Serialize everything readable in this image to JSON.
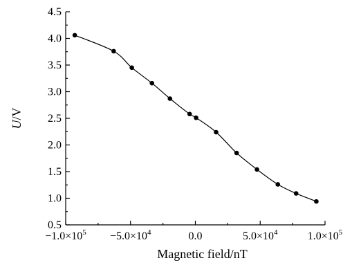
{
  "chart_data": {
    "type": "line",
    "title": "",
    "xlabel": "Magnetic field/nT",
    "ylabel_italic": "U",
    "ylabel_rest": "/V",
    "xlim": [
      -100000,
      100000
    ],
    "ylim": [
      0.5,
      4.5
    ],
    "x_ticks": [
      {
        "value": -100000,
        "mantissa": "−1.0",
        "times": "×",
        "base": "10",
        "exp": "5"
      },
      {
        "value": -50000,
        "mantissa": "−5.0",
        "times": "×",
        "base": "10",
        "exp": "4"
      },
      {
        "value": 0,
        "mantissa": "0.0",
        "times": "",
        "base": "",
        "exp": ""
      },
      {
        "value": 50000,
        "mantissa": "5.0",
        "times": "×",
        "base": "10",
        "exp": "4"
      },
      {
        "value": 100000,
        "mantissa": "1.0",
        "times": "×",
        "base": "10",
        "exp": "5"
      }
    ],
    "y_ticks": [
      {
        "value": 0.5,
        "label": "0.5"
      },
      {
        "value": 1.0,
        "label": "1.0"
      },
      {
        "value": 1.5,
        "label": "1.5"
      },
      {
        "value": 2.0,
        "label": "2.0"
      },
      {
        "value": 2.5,
        "label": "2.5"
      },
      {
        "value": 3.0,
        "label": "3.0"
      },
      {
        "value": 3.5,
        "label": "3.5"
      },
      {
        "value": 4.0,
        "label": "4.0"
      },
      {
        "value": 4.5,
        "label": "4.5"
      }
    ],
    "series": [
      {
        "points": [
          {
            "x": -93000,
            "y": 4.06
          },
          {
            "x": -63000,
            "y": 3.76
          },
          {
            "x": -49000,
            "y": 3.45
          },
          {
            "x": -33500,
            "y": 3.16
          },
          {
            "x": -19600,
            "y": 2.87
          },
          {
            "x": -4400,
            "y": 2.58
          },
          {
            "x": 600,
            "y": 2.51
          },
          {
            "x": 16000,
            "y": 2.24
          },
          {
            "x": 31800,
            "y": 1.85
          },
          {
            "x": 47500,
            "y": 1.54
          },
          {
            "x": 63600,
            "y": 1.26
          },
          {
            "x": 77700,
            "y": 1.09
          },
          {
            "x": 93300,
            "y": 0.94
          }
        ]
      }
    ]
  }
}
